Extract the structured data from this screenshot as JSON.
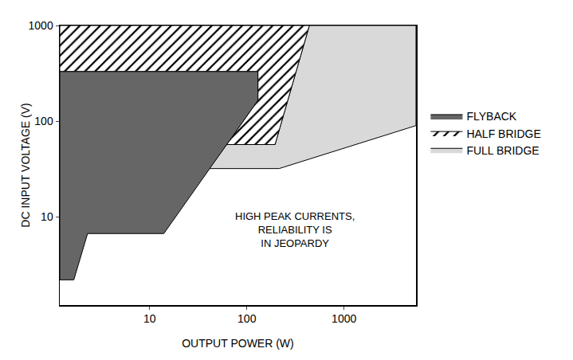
{
  "chart_data": {
    "type": "area",
    "x_label": "OUTPUT POWER (W)",
    "y_label": "DC INPUT VOLTAGE (V)",
    "log": true,
    "grid": false,
    "legend": "right",
    "xlim": [
      1.19,
      5500
    ],
    "ylim": [
      1.2,
      1000
    ],
    "xticks": [
      10,
      100,
      1000
    ],
    "yticks": [
      10,
      100,
      1000
    ],
    "series": [
      {
        "name": "FULL BRIDGE",
        "color": "#d9d9d9",
        "marker": "solid",
        "x": [
          440,
          5500,
          5500,
          215,
          41,
          62,
          195
        ],
        "y": [
          1000,
          1000,
          90,
          32,
          32,
          57,
          57
        ]
      },
      {
        "name": "HALF BRIDGE",
        "color": "#000000",
        "marker": "hatch",
        "x": [
          1.19,
          440,
          195,
          62,
          130,
          130,
          1.19
        ],
        "y": [
          1000,
          1000,
          57,
          57,
          165,
          330,
          330
        ]
      },
      {
        "name": "FLYBACK",
        "color": "#666666",
        "marker": "solid",
        "x": [
          1.19,
          1.19,
          130,
          130,
          14,
          2.3,
          1.66
        ],
        "y": [
          2.2,
          330,
          330,
          165,
          6.7,
          6.7,
          2.2
        ]
      }
    ],
    "annotations": [
      {
        "text": "HIGH PEAK CURRENTS,\nRELIABILITY IS\nIN JEOPARDY",
        "x": 310,
        "y": 7.3
      }
    ]
  }
}
